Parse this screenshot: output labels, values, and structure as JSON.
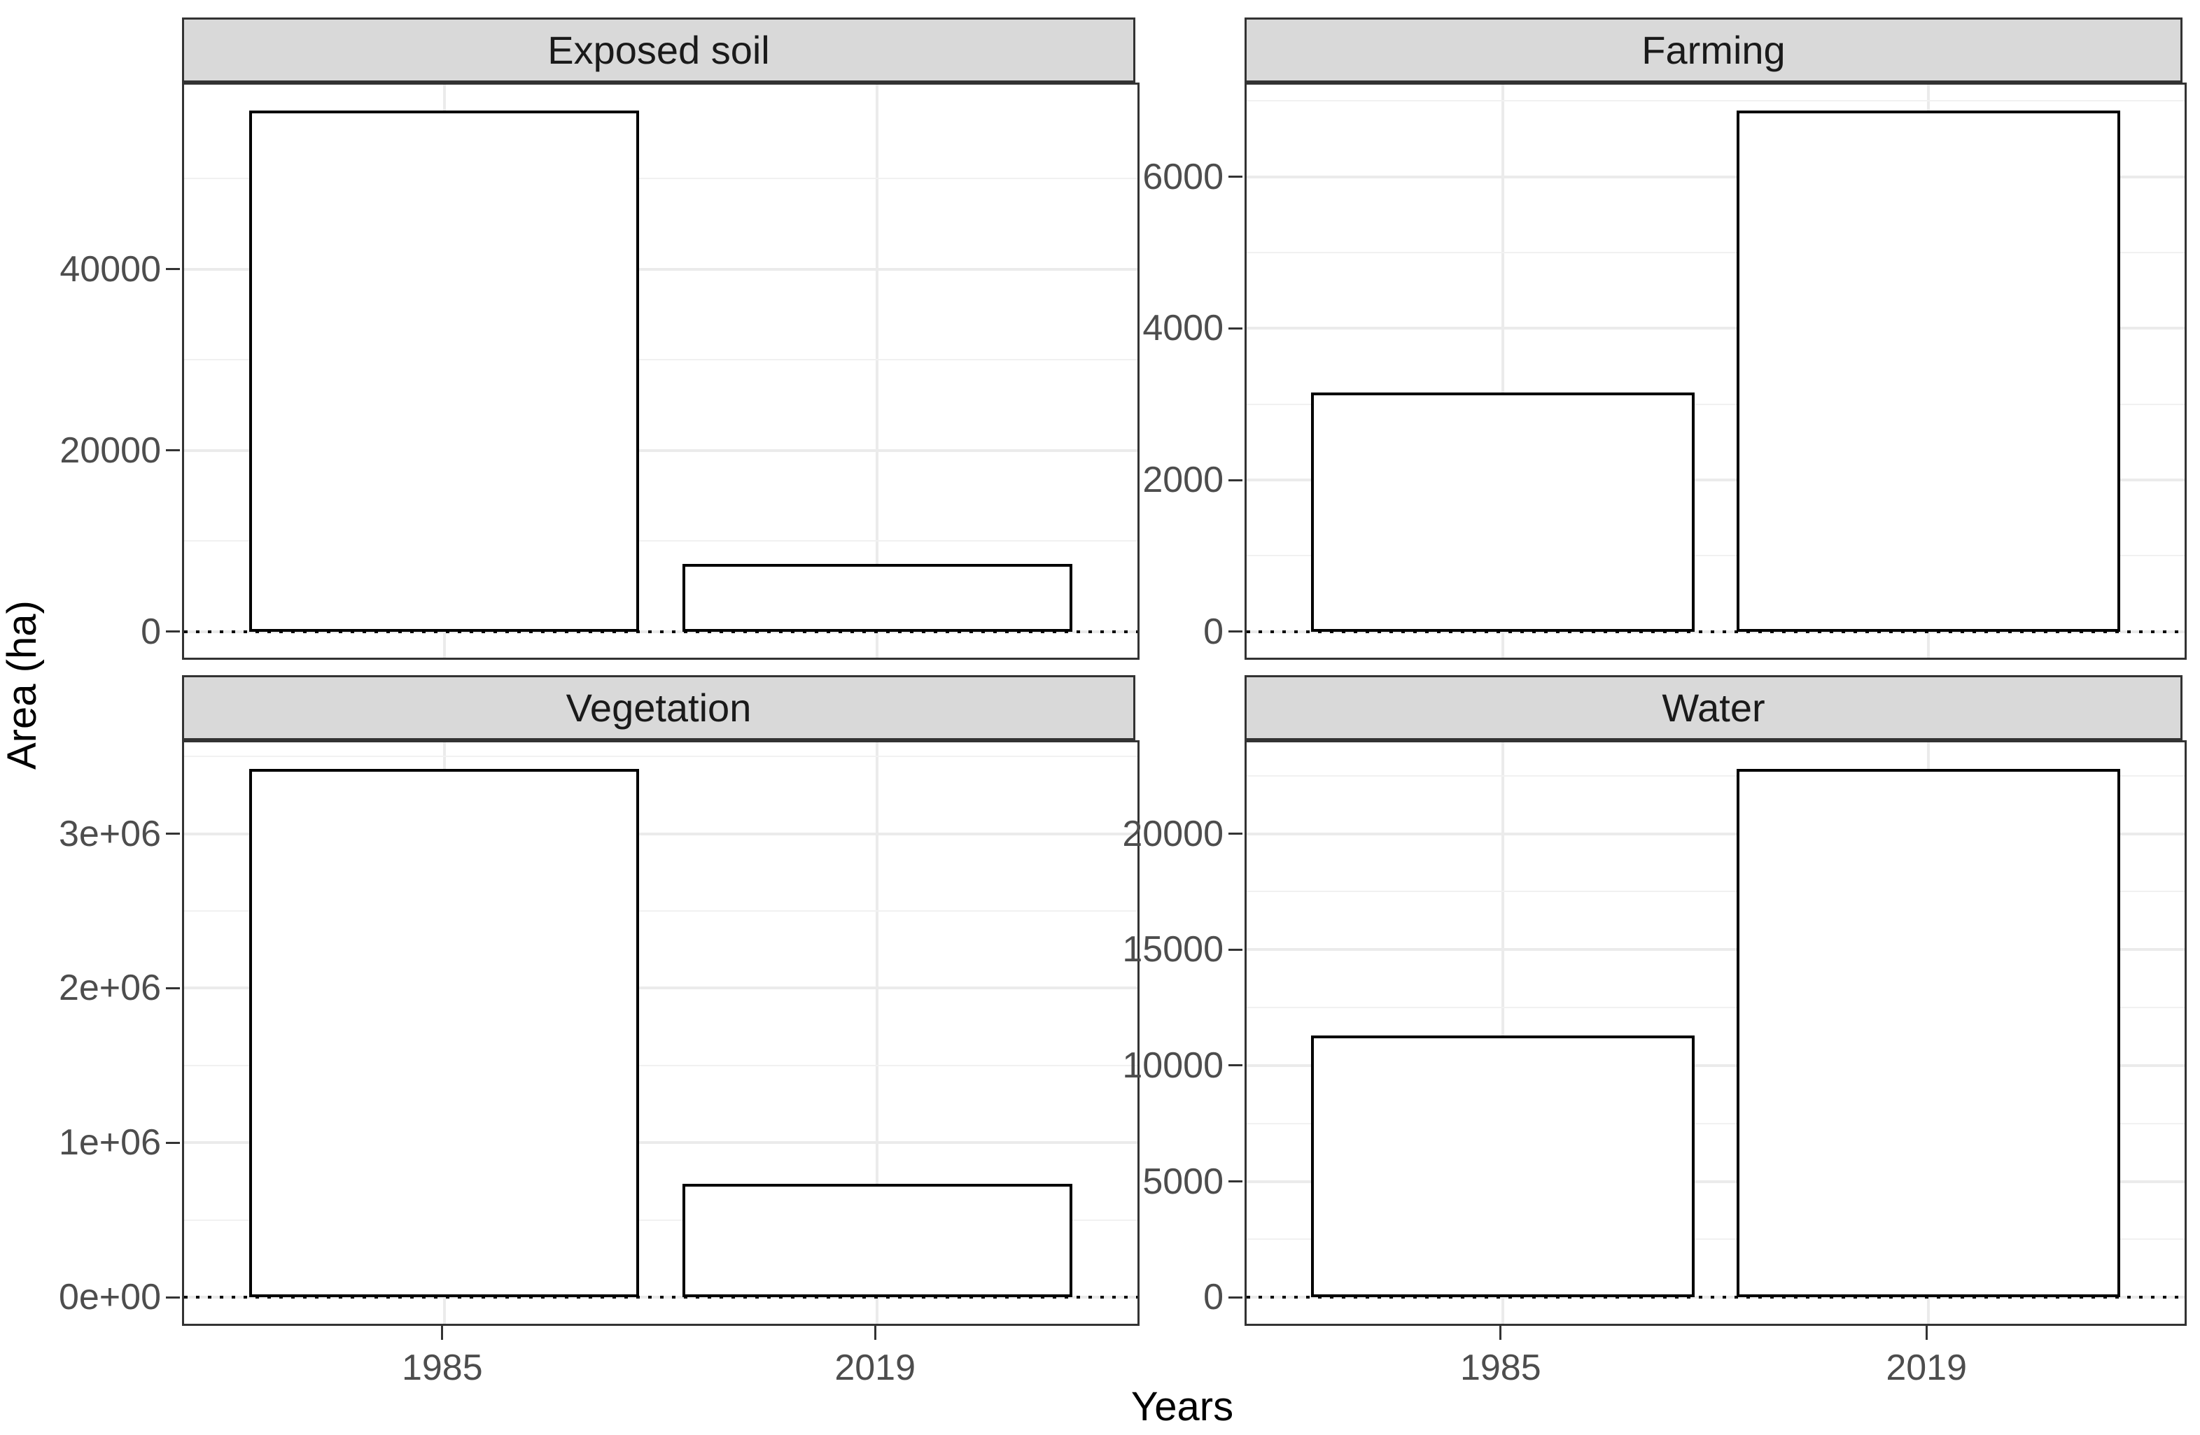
{
  "figure": {
    "y_axis_title": "Area (ha)",
    "x_axis_title": "Years"
  },
  "chart_data": {
    "type": "bar",
    "title": "",
    "xlabel": "Years",
    "ylabel": "Area (ha)",
    "categories": [
      "1985",
      "2019"
    ],
    "legend": "none",
    "grid": "on",
    "y_expansion": 0.05,
    "facets": [
      {
        "title": "Exposed soil",
        "values": [
          57500,
          7500
        ],
        "yticks": [
          {
            "value": 0,
            "label": "0"
          },
          {
            "value": 20000,
            "label": "20000"
          },
          {
            "value": 40000,
            "label": "40000"
          }
        ],
        "minor_gridlines": [
          10000,
          30000,
          50000
        ]
      },
      {
        "title": "Farming",
        "values": [
          3150,
          6870
        ],
        "yticks": [
          {
            "value": 0,
            "label": "0"
          },
          {
            "value": 2000,
            "label": "2000"
          },
          {
            "value": 4000,
            "label": "4000"
          },
          {
            "value": 6000,
            "label": "6000"
          }
        ],
        "minor_gridlines": [
          1000,
          3000,
          5000,
          7000
        ]
      },
      {
        "title": "Vegetation",
        "values": [
          3420000,
          735000
        ],
        "yticks": [
          {
            "value": 0,
            "label": "0e+00"
          },
          {
            "value": 1000000,
            "label": "1e+06"
          },
          {
            "value": 2000000,
            "label": "2e+06"
          },
          {
            "value": 3000000,
            "label": "3e+06"
          }
        ],
        "minor_gridlines": [
          500000,
          1500000,
          2500000,
          3500000
        ]
      },
      {
        "title": "Water",
        "values": [
          11300,
          22800
        ],
        "yticks": [
          {
            "value": 0,
            "label": "0"
          },
          {
            "value": 5000,
            "label": "5000"
          },
          {
            "value": 10000,
            "label": "10000"
          },
          {
            "value": 15000,
            "label": "15000"
          },
          {
            "value": 20000,
            "label": "20000"
          }
        ],
        "minor_gridlines": [
          2500,
          7500,
          12500,
          17500,
          22500
        ]
      }
    ],
    "bar_style": {
      "fill": "#ffffff",
      "stroke": "#000000",
      "width_fraction": 0.409,
      "centers": [
        0.273,
        0.727
      ]
    },
    "zero_line": {
      "style": "dotted",
      "color": "#000000"
    }
  },
  "style": {
    "background": "#ffffff",
    "strip_fill": "#d9d9d9",
    "strip_border": "#333333",
    "panel_border": "#333333",
    "grid_major_color": "#ebebeb",
    "grid_minor_color": "#f1f1f1",
    "tick_color": "#333333",
    "tick_label_color": "#4d4d4d",
    "title_color": "#000000"
  }
}
